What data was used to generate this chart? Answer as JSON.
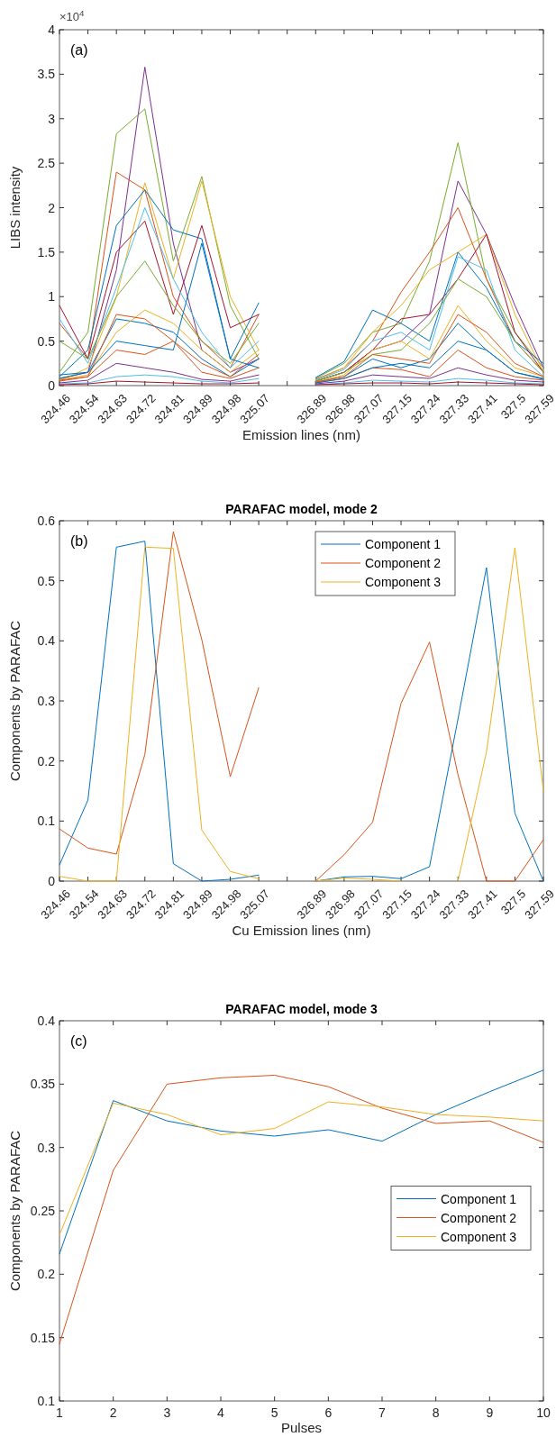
{
  "chart_data": [
    {
      "type": "line",
      "xlabel": "Emission lines (nm)",
      "ylabel": "LIBS intensity",
      "annotations": [
        "(a)",
        "×10$^{4}$"
      ],
      "categories": [
        "324.46",
        "324.54",
        "324.63",
        "324.72",
        "324.81",
        "324.89",
        "324.98",
        "325.07",
        null,
        "326.89",
        "326.98",
        "327.07",
        "327.15",
        "327.24",
        "327.33",
        "327.41",
        "327.5",
        "327.59"
      ],
      "ylim": [
        0,
        4
      ],
      "yticks": [
        0,
        0.5,
        1,
        1.5,
        2,
        2.5,
        3,
        3.5,
        4
      ],
      "series": [
        {
          "color": "#7e2f8e",
          "values": [
            0.08,
            0.15,
            1.3,
            3.58,
            1.6,
            0.4,
            0.15,
            0.3,
            null,
            0.05,
            0.15,
            0.4,
            0.5,
            0.8,
            2.3,
            1.7,
            0.9,
            0.2
          ]
        },
        {
          "color": "#77ac30",
          "values": [
            0.15,
            0.6,
            2.83,
            3.11,
            1.4,
            2.35,
            0.9,
            0.3,
            null,
            0.08,
            0.25,
            0.6,
            0.7,
            1.4,
            2.73,
            1.2,
            0.6,
            0.2
          ]
        },
        {
          "color": "#d95319",
          "values": [
            0.7,
            0.3,
            2.4,
            2.2,
            1,
            0.5,
            0.2,
            0.8,
            null,
            0.07,
            0.2,
            0.5,
            1.05,
            1.5,
            2,
            1.2,
            0.5,
            0.15
          ]
        },
        {
          "color": "#edb120",
          "values": [
            0.05,
            0.2,
            1,
            2.28,
            1.2,
            2.3,
            1,
            0.4,
            null,
            0.06,
            0.2,
            0.6,
            0.9,
            1.3,
            1.5,
            1.7,
            0.8,
            0.15
          ]
        },
        {
          "color": "#0072bd",
          "values": [
            0.1,
            0.4,
            1.8,
            2.2,
            1.75,
            1.65,
            0.3,
            0.93,
            null,
            0.09,
            0.27,
            0.85,
            0.7,
            0.5,
            1.5,
            1.1,
            0.5,
            0.25
          ]
        },
        {
          "color": "#a2142f",
          "values": [
            0.9,
            0.3,
            1.5,
            1.85,
            0.8,
            1.8,
            0.65,
            0.8,
            null,
            0.05,
            0.15,
            0.4,
            0.75,
            0.8,
            1.2,
            1.7,
            0.6,
            0.15
          ]
        },
        {
          "color": "#4dbeee",
          "values": [
            0.75,
            0.25,
            1.1,
            2,
            1.2,
            0.6,
            0.2,
            0.5,
            null,
            0.06,
            0.18,
            0.5,
            0.6,
            0.4,
            1.45,
            1.3,
            0.4,
            0.1
          ]
        },
        {
          "color": "#0072bd",
          "values": [
            0.12,
            0.15,
            0.75,
            0.7,
            0.6,
            0.3,
            0.1,
            0.3,
            null,
            0.04,
            0.1,
            0.3,
            0.2,
            0.3,
            0.7,
            0.4,
            0.15,
            0.08
          ]
        },
        {
          "color": "#d95319",
          "values": [
            0.05,
            0.1,
            0.4,
            0.35,
            0.5,
            0.15,
            0.08,
            0.2,
            null,
            0.03,
            0.08,
            0.2,
            0.18,
            0.1,
            0.4,
            0.2,
            0.1,
            0.06
          ]
        },
        {
          "color": "#77ac30",
          "values": [
            0.5,
            0.3,
            1,
            1.4,
            0.9,
            0.5,
            0.25,
            0.7,
            null,
            0.05,
            0.15,
            0.35,
            0.4,
            0.7,
            1.2,
            1,
            0.5,
            0.15
          ]
        },
        {
          "color": "#7e2f8e",
          "values": [
            0.03,
            0.06,
            0.25,
            0.2,
            0.15,
            0.07,
            0.05,
            0.12,
            null,
            0.02,
            0.05,
            0.12,
            0.1,
            0.08,
            0.2,
            0.12,
            0.06,
            0.04
          ]
        },
        {
          "color": "#edb120",
          "values": [
            0.07,
            0.12,
            0.6,
            0.85,
            0.7,
            0.4,
            0.15,
            0.4,
            null,
            0.04,
            0.12,
            0.4,
            0.5,
            0.3,
            0.9,
            0.5,
            0.2,
            0.1
          ]
        },
        {
          "color": "#4dbeee",
          "values": [
            0.02,
            0.03,
            0.1,
            0.12,
            0.1,
            0.05,
            0.03,
            0.08,
            null,
            0.01,
            0.03,
            0.06,
            0.05,
            0.04,
            0.08,
            0.06,
            0.03,
            0.02
          ]
        },
        {
          "color": "#d95319",
          "values": [
            0.06,
            0.1,
            0.8,
            0.75,
            0.5,
            0.25,
            0.1,
            0.35,
            null,
            0.04,
            0.1,
            0.35,
            0.3,
            0.25,
            0.8,
            0.6,
            0.25,
            0.1
          ]
        },
        {
          "color": "#a2142f",
          "values": [
            0.01,
            0.02,
            0.05,
            0.04,
            0.03,
            0.02,
            0.02,
            0.03,
            null,
            0.01,
            0.02,
            0.03,
            0.03,
            0.02,
            0.04,
            0.03,
            0.02,
            0.01
          ]
        },
        {
          "color": "#0072bd",
          "values": [
            0.08,
            0.15,
            0.5,
            0.45,
            0.4,
            1.6,
            0.3,
            0.2,
            null,
            0.03,
            0.08,
            0.2,
            0.25,
            0.2,
            0.5,
            0.4,
            0.15,
            0.07
          ]
        }
      ]
    },
    {
      "type": "line",
      "title": "PARAFAC model, mode 2",
      "xlabel": "Cu Emission lines (nm)",
      "ylabel": "Components by PARAFAC",
      "annotations": [
        "(b)"
      ],
      "legend": "top",
      "categories": [
        "324.46",
        "324.54",
        "324.63",
        "324.72",
        "324.81",
        "324.89",
        "324.98",
        "325.07",
        null,
        "326.89",
        "326.98",
        "327.07",
        "327.15",
        "327.24",
        "327.33",
        "327.41",
        "327.5",
        "327.59"
      ],
      "ylim": [
        0,
        0.6
      ],
      "yticks": [
        0,
        0.1,
        0.2,
        0.3,
        0.4,
        0.5,
        0.6
      ],
      "series": [
        {
          "name": "Component 1",
          "color": "#0072bd",
          "values": [
            0.027,
            0.135,
            0.556,
            0.566,
            0.029,
            0,
            0.003,
            0.01,
            null,
            0,
            0.007,
            0.008,
            0.004,
            0.024,
            0.27,
            0.522,
            0.113,
            0
          ]
        },
        {
          "name": "Component 2",
          "color": "#d95319",
          "values": [
            0.087,
            0.055,
            0.045,
            0.211,
            0.582,
            0.402,
            0.174,
            0.322,
            null,
            0,
            0.044,
            0.098,
            0.296,
            0.398,
            0.177,
            0,
            0,
            0.069
          ]
        },
        {
          "name": "Component 3",
          "color": "#edb120",
          "values": [
            0.008,
            0,
            0,
            0.556,
            0.554,
            0.085,
            0.016,
            0.004,
            null,
            0,
            0.005,
            0.003,
            0,
            null,
            0,
            0.215,
            0.555,
            0.15
          ]
        }
      ]
    },
    {
      "type": "line",
      "title": "PARAFAC model, mode 3",
      "xlabel": "Pulses",
      "ylabel": "Components by PARAFAC",
      "annotations": [
        "(c)"
      ],
      "legend": "right",
      "x": [
        1,
        2,
        3,
        4,
        5,
        6,
        7,
        8,
        9,
        10
      ],
      "xlim": [
        1,
        10
      ],
      "xticks": [
        1,
        2,
        3,
        4,
        5,
        6,
        7,
        8,
        9,
        10
      ],
      "ylim": [
        0.1,
        0.4
      ],
      "yticks": [
        0.1,
        0.15,
        0.2,
        0.25,
        0.3,
        0.35,
        0.4
      ],
      "series": [
        {
          "name": "Component 1",
          "color": "#0072bd",
          "values": [
            0.216,
            0.337,
            0.321,
            0.313,
            0.309,
            0.314,
            0.305,
            0.326,
            0.344,
            0.361
          ]
        },
        {
          "name": "Component 2",
          "color": "#d95319",
          "values": [
            0.145,
            0.282,
            0.35,
            0.355,
            0.357,
            0.348,
            0.331,
            0.319,
            0.321,
            0.304
          ]
        },
        {
          "name": "Component 3",
          "color": "#edb120",
          "values": [
            0.231,
            0.335,
            0.326,
            0.31,
            0.315,
            0.336,
            0.332,
            0.326,
            0.324,
            0.321
          ]
        }
      ]
    }
  ]
}
